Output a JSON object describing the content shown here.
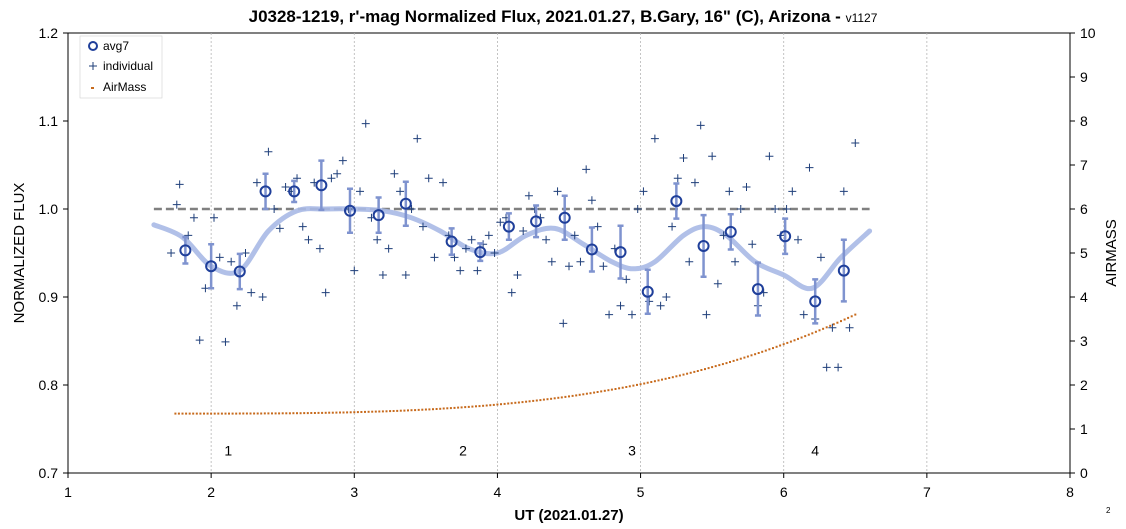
{
  "chart_data": {
    "type": "scatter",
    "title": "J0328-1219, r'-mag Normalized Flux, 2021.01.27, B.Gary, 16\" (C), Arizona - ",
    "title_version": "v1127",
    "xlabel": "UT (2021.01.27)",
    "ylabel": "NORMALIZED FLUX",
    "y2label": "AIRMASS",
    "xlim": [
      1,
      8
    ],
    "ylim": [
      0.7,
      1.2
    ],
    "y2lim": [
      0,
      10
    ],
    "x_ticks": [
      "1",
      "2",
      "3",
      "4",
      "5",
      "6",
      "7",
      "8"
    ],
    "y_ticks": [
      "0.7",
      "0.8",
      "0.9",
      "1.0",
      "1.1",
      "1.2"
    ],
    "y2_ticks": [
      "0",
      "1",
      "2",
      "3",
      "4",
      "5",
      "6",
      "7",
      "8",
      "9",
      "10"
    ],
    "grid": "vertical-dashed",
    "legend_position": "top-left",
    "legend": [
      "avg7",
      "individual",
      "AirMass"
    ],
    "colors": {
      "avg7": "#1f3f9a",
      "errorbar": "#7f93cf",
      "individual": "#1f3f7a",
      "model": "#a9b9e6",
      "reference": "#808080",
      "airmass": "#c76a1c"
    },
    "reference_line": {
      "y": 1.0,
      "x": [
        1.6,
        6.6
      ]
    },
    "annotations": [
      {
        "text": "1",
        "x": 2.12,
        "y": 0.72
      },
      {
        "text": "2",
        "x": 3.76,
        "y": 0.72
      },
      {
        "text": "3",
        "x": 4.94,
        "y": 0.72
      },
      {
        "text": "4",
        "x": 6.22,
        "y": 0.72
      }
    ],
    "corner_label": "2",
    "series": [
      {
        "name": "avg7",
        "x": [
          1.82,
          2.0,
          2.2,
          2.38,
          2.58,
          2.77,
          2.97,
          3.17,
          3.36,
          3.68,
          3.88,
          4.08,
          4.27,
          4.47,
          4.66,
          4.86,
          5.05,
          5.25,
          5.44,
          5.63,
          5.82,
          6.01,
          6.22,
          6.42
        ],
        "y": [
          0.953,
          0.935,
          0.929,
          1.02,
          1.02,
          1.027,
          0.998,
          0.993,
          1.006,
          0.963,
          0.951,
          0.98,
          0.986,
          0.99,
          0.954,
          0.951,
          0.906,
          1.009,
          0.958,
          0.974,
          0.909,
          0.969,
          0.895,
          0.93
        ],
        "err": [
          0.015,
          0.025,
          0.02,
          0.02,
          0.012,
          0.028,
          0.025,
          0.02,
          0.025,
          0.015,
          0.01,
          0.015,
          0.018,
          0.025,
          0.025,
          0.03,
          0.025,
          0.02,
          0.035,
          0.02,
          0.03,
          0.02,
          0.025,
          0.035
        ]
      },
      {
        "name": "individual",
        "x": [
          1.72,
          1.76,
          1.78,
          1.84,
          1.88,
          1.92,
          1.96,
          2.02,
          2.06,
          2.1,
          2.14,
          2.18,
          2.24,
          2.28,
          2.32,
          2.36,
          2.4,
          2.44,
          2.48,
          2.52,
          2.56,
          2.6,
          2.64,
          2.68,
          2.72,
          2.76,
          2.8,
          2.84,
          2.88,
          2.92,
          2.96,
          3.0,
          3.04,
          3.08,
          3.12,
          3.16,
          3.2,
          3.24,
          3.28,
          3.32,
          3.36,
          3.4,
          3.44,
          3.48,
          3.52,
          3.56,
          3.62,
          3.66,
          3.7,
          3.74,
          3.78,
          3.82,
          3.86,
          3.9,
          3.94,
          3.98,
          4.02,
          4.06,
          4.1,
          4.14,
          4.18,
          4.22,
          4.26,
          4.3,
          4.34,
          4.38,
          4.42,
          4.46,
          4.5,
          4.54,
          4.58,
          4.62,
          4.66,
          4.7,
          4.74,
          4.78,
          4.82,
          4.86,
          4.9,
          4.94,
          4.98,
          5.02,
          5.06,
          5.1,
          5.14,
          5.18,
          5.22,
          5.26,
          5.3,
          5.34,
          5.38,
          5.42,
          5.46,
          5.5,
          5.54,
          5.58,
          5.62,
          5.66,
          5.7,
          5.74,
          5.78,
          5.82,
          5.86,
          5.9,
          5.94,
          5.98,
          6.02,
          6.06,
          6.1,
          6.14,
          6.18,
          6.22,
          6.26,
          6.3,
          6.34,
          6.38,
          6.42,
          6.46,
          6.5
        ],
        "y": [
          0.95,
          1.005,
          1.028,
          0.97,
          0.99,
          0.851,
          0.91,
          0.99,
          0.945,
          0.849,
          0.94,
          0.89,
          0.95,
          0.905,
          1.03,
          0.9,
          1.065,
          1.0,
          0.978,
          1.025,
          1.02,
          1.035,
          0.98,
          0.965,
          1.03,
          0.955,
          0.905,
          1.035,
          1.04,
          1.055,
          1.0,
          0.93,
          1.02,
          1.097,
          0.99,
          0.965,
          0.925,
          0.955,
          1.04,
          1.02,
          0.925,
          1.0,
          1.08,
          0.98,
          1.035,
          0.945,
          1.03,
          0.97,
          0.945,
          0.93,
          0.955,
          0.965,
          0.93,
          0.96,
          0.97,
          0.95,
          0.985,
          0.99,
          0.905,
          0.925,
          0.975,
          1.015,
          1.0,
          0.99,
          0.965,
          0.94,
          1.02,
          0.87,
          0.935,
          0.97,
          0.94,
          1.045,
          1.01,
          0.98,
          0.935,
          0.88,
          0.955,
          0.89,
          0.92,
          0.88,
          1.0,
          1.02,
          0.895,
          1.08,
          0.89,
          0.9,
          0.98,
          1.035,
          1.058,
          0.94,
          1.03,
          1.095,
          0.88,
          1.06,
          0.915,
          0.97,
          1.02,
          0.94,
          1.0,
          1.025,
          0.96,
          0.89,
          0.905,
          1.06,
          1.0,
          0.97,
          1.0,
          1.02,
          0.965,
          0.88,
          1.047,
          0.875,
          0.945,
          0.82,
          0.865,
          0.82,
          1.02,
          0.865,
          1.075
        ]
      },
      {
        "name": "AirMass",
        "axis": "right",
        "x_start": 1.75,
        "x_end": 6.5,
        "x_step": 0.025,
        "formula": "airmass = 1.35 + 2.25 * ((x - 1.75) / 4.75)^3.2"
      },
      {
        "name": "model",
        "x": [
          1.6,
          1.8,
          2.0,
          2.2,
          2.4,
          2.6,
          2.8,
          3.0,
          3.2,
          3.4,
          3.6,
          3.8,
          4.0,
          4.2,
          4.4,
          4.6,
          4.8,
          4.95,
          5.1,
          5.3,
          5.45,
          5.6,
          5.8,
          6.0,
          6.2,
          6.4,
          6.6
        ],
        "y": [
          0.982,
          0.968,
          0.935,
          0.93,
          0.975,
          0.998,
          1.0,
          1.0,
          0.998,
          0.99,
          0.975,
          0.955,
          0.95,
          0.97,
          0.978,
          0.96,
          0.94,
          0.932,
          0.94,
          0.97,
          0.98,
          0.97,
          0.94,
          0.925,
          0.91,
          0.945,
          0.975
        ]
      }
    ]
  }
}
